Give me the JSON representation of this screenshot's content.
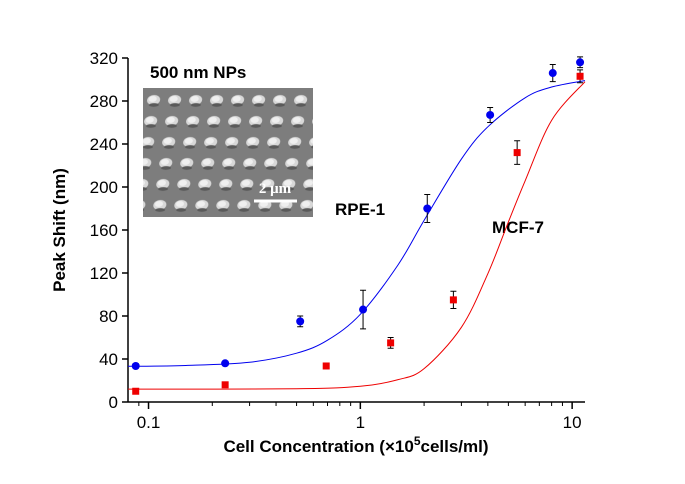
{
  "chart_data": {
    "type": "scatter",
    "xlabel": {
      "text": "Cell Concentration (×10",
      "sup": "5",
      "end": "cells/ml)"
    },
    "ylabel": "Peak Shift (nm)",
    "log_x": true,
    "xlim": [
      0.08,
      11.5
    ],
    "ylim": [
      0,
      320
    ],
    "xticks": [
      0.1,
      1,
      10
    ],
    "minor_xticks": [
      0.09,
      0.2,
      0.3,
      0.4,
      0.5,
      0.6,
      0.7,
      0.8,
      0.9,
      2,
      3,
      4,
      5,
      6,
      7,
      8,
      9
    ],
    "yticks": [
      0,
      40,
      80,
      120,
      160,
      200,
      240,
      280,
      320
    ],
    "inset": {
      "title": "500 nm NPs",
      "scale_bar": "2 μm"
    },
    "annotations": [
      "RPE-1",
      "MCF-7"
    ],
    "series": [
      {
        "name": "RPE-1",
        "color": "#0000ee",
        "marker": "circle",
        "x": [
          0.087,
          0.23,
          0.52,
          1.03,
          2.07,
          4.1,
          8.1,
          10.9
        ],
        "values": [
          33.5,
          36,
          75,
          86,
          180,
          267,
          306,
          316
        ],
        "errors": [
          2,
          2,
          5,
          18,
          13,
          7,
          8,
          5
        ],
        "fit_x": [
          0.08,
          0.15,
          0.3,
          0.5,
          0.7,
          1,
          1.5,
          2,
          3,
          4,
          6,
          8,
          11.5
        ],
        "fit_values": [
          33.2,
          34,
          37,
          45.4,
          57.5,
          81.6,
          127,
          169,
          226,
          256,
          283,
          293,
          299
        ]
      },
      {
        "name": "MCF-7",
        "color": "#ee0000",
        "marker": "square",
        "x": [
          0.087,
          0.23,
          0.69,
          1.39,
          2.75,
          5.5,
          10.9
        ],
        "values": [
          10,
          16,
          33.5,
          55,
          95,
          232,
          303
        ],
        "errors": [
          1,
          1,
          2,
          5,
          8,
          11,
          6
        ],
        "fit_x": [
          0.08,
          0.5,
          1,
          1.5,
          2,
          3,
          4,
          5,
          6,
          8,
          11.5
        ],
        "fit_values": [
          12,
          12.3,
          14.6,
          20.7,
          31,
          69.5,
          119.4,
          167.5,
          205.8,
          262,
          298
        ]
      }
    ]
  }
}
